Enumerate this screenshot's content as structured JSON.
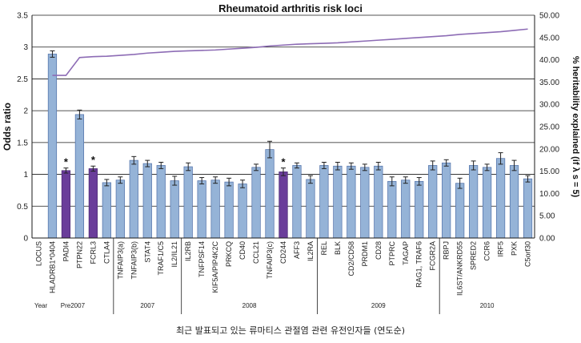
{
  "chart_data": {
    "type": "bar",
    "title": "Rheumatoid arthritis risk loci",
    "ylabel": "Odds ratio",
    "y2label": "% heritability explained (if λ s = 5)",
    "ylim": [
      0,
      3.5
    ],
    "y2lim": [
      0,
      50
    ],
    "yticks": [
      "0",
      "0.5",
      "1",
      "1.5",
      "2",
      "2.5",
      "3",
      "3.5"
    ],
    "y2ticks": [
      "0.00",
      "5.00",
      "10.00",
      "15.00",
      "20.00",
      "25.00",
      "30.00",
      "35.00",
      "40.00",
      "45.00",
      "50.00"
    ],
    "grid": true,
    "categories": [
      "LOCUS",
      "HLADRB1*0404",
      "PADI4",
      "PTPN22",
      "FCRL3",
      "CTLA4",
      "TNFAIP3(a)",
      "TNFAIP3(b)",
      "STAT4",
      "TRAF1/C5",
      "IL2/IL21",
      "IL2RB",
      "TNFPSF14",
      "KIF5A/PIP4K2C",
      "PRKCQ",
      "CD40",
      "CCL21",
      "TNFAIP3(c)",
      "CD244",
      "AFF3",
      "IL2RA",
      "REL",
      "BLK",
      "CD2/CD58",
      "PRDM1",
      "CD28",
      "PTPRC",
      "TAGAP",
      "RAG1, TRAF6",
      "FCGR2A",
      "RBPJ",
      "IL6ST/ANKRD55",
      "SPRED2",
      "CCR6",
      "IRF5",
      "PXK",
      "C5orf30"
    ],
    "values": [
      null,
      2.89,
      1.06,
      1.94,
      1.09,
      0.87,
      0.91,
      1.22,
      1.17,
      1.14,
      0.9,
      1.12,
      0.9,
      0.91,
      0.88,
      0.85,
      1.11,
      1.39,
      1.04,
      1.14,
      0.92,
      1.14,
      1.13,
      1.13,
      1.11,
      1.13,
      0.89,
      0.91,
      0.89,
      1.14,
      1.18,
      0.86,
      1.14,
      1.11,
      1.25,
      1.14,
      0.93
    ],
    "errors": [
      null,
      0.05,
      0.04,
      0.07,
      0.04,
      0.05,
      0.05,
      0.06,
      0.05,
      0.05,
      0.07,
      0.06,
      0.05,
      0.05,
      0.06,
      0.06,
      0.05,
      0.13,
      0.06,
      0.04,
      0.06,
      0.05,
      0.06,
      0.05,
      0.05,
      0.06,
      0.07,
      0.05,
      0.06,
      0.07,
      0.05,
      0.08,
      0.07,
      0.05,
      0.09,
      0.08,
      0.05
    ],
    "highlighted": [
      2,
      4,
      18
    ],
    "highlight_marker": "*",
    "bar_color": "#95b3d7",
    "bar_edge_color": "#4f6fa8",
    "highlight_color": "#6a3d9a",
    "line_color": "#8d6cb5",
    "heritability": [
      null,
      36.5,
      36.5,
      40.5,
      40.7,
      40.8,
      41.0,
      41.2,
      41.5,
      41.7,
      41.9,
      42.0,
      42.1,
      42.2,
      42.4,
      42.6,
      42.8,
      43.1,
      43.3,
      43.5,
      43.6,
      43.7,
      43.8,
      44.0,
      44.2,
      44.4,
      44.6,
      44.8,
      45.0,
      45.2,
      45.4,
      45.7,
      45.9,
      46.1,
      46.3,
      46.6,
      46.9
    ],
    "year_label": "Year",
    "year_groups": [
      {
        "label": "Pre2007",
        "start": 0,
        "end": 5
      },
      {
        "label": "2007",
        "start": 6,
        "end": 10
      },
      {
        "label": "2008",
        "start": 11,
        "end": 20
      },
      {
        "label": "2009",
        "start": 21,
        "end": 29
      },
      {
        "label": "2010",
        "start": 30,
        "end": 36
      }
    ]
  },
  "caption": "최근 발표되고 있는 류마티스 관절염 관련 유전인자들 (연도순)"
}
